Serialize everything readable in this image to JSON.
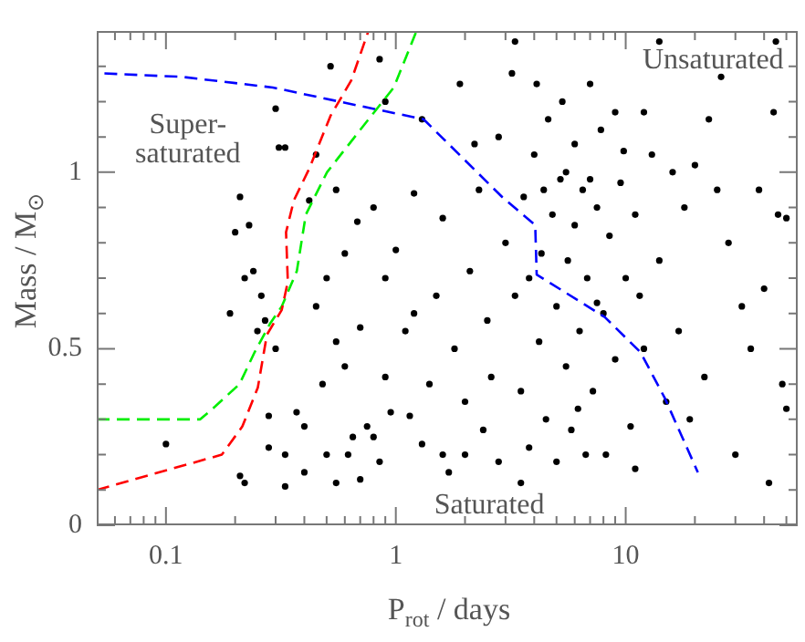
{
  "chart_data": {
    "type": "scatter",
    "xlabel": "P$_{rot}$ / days",
    "ylabel": "Mass / M$_{⊙}$",
    "log": "x",
    "xlim": [
      0.05,
      56
    ],
    "ylim": [
      0,
      1.4
    ],
    "xticks": [
      {
        "value": 0.06,
        "label": null
      },
      {
        "value": 0.07,
        "label": null
      },
      {
        "value": 0.08,
        "label": null
      },
      {
        "value": 0.09,
        "label": null
      },
      0.1,
      {
        "value": 0.2,
        "label": null
      },
      {
        "value": 0.3,
        "label": null
      },
      {
        "value": 0.4,
        "label": null
      },
      {
        "value": 0.5,
        "label": null
      },
      {
        "value": 0.6,
        "label": null
      },
      {
        "value": 0.7,
        "label": null
      },
      {
        "value": 0.8,
        "label": null
      },
      {
        "value": 0.9,
        "label": null
      },
      1,
      {
        "value": 2,
        "label": null
      },
      {
        "value": 3,
        "label": null
      },
      {
        "value": 4,
        "label": null
      },
      {
        "value": 5,
        "label": null
      },
      {
        "value": 6,
        "label": null
      },
      {
        "value": 7,
        "label": null
      },
      {
        "value": 8,
        "label": null
      },
      {
        "value": 9,
        "label": null
      },
      10,
      {
        "value": 20,
        "label": null
      },
      {
        "value": 30,
        "label": null
      },
      {
        "value": 40,
        "label": null
      },
      {
        "value": 50,
        "label": null
      }
    ],
    "yticks": [
      0,
      {
        "value": 0.1,
        "label": null
      },
      {
        "value": 0.2,
        "label": null
      },
      {
        "value": 0.3,
        "label": null
      },
      {
        "value": 0.4,
        "label": null
      },
      0.5,
      {
        "value": 0.6,
        "label": null
      },
      {
        "value": 0.7,
        "label": null
      },
      {
        "value": 0.8,
        "label": null
      },
      {
        "value": 0.9,
        "label": null
      },
      1,
      {
        "value": 1.1,
        "label": null
      },
      {
        "value": 1.2,
        "label": null
      },
      {
        "value": 1.3,
        "label": null
      }
    ],
    "annotations": [
      "Unsaturated",
      "Super-\nsaturated",
      "Saturated"
    ],
    "series": [
      {
        "type": "scatter",
        "color": "#000000",
        "marker": "circle",
        "x": [
          0.19,
          0.21,
          0.2,
          0.22,
          0.21,
          0.22,
          0.23,
          0.24,
          0.26,
          0.27,
          0.25,
          0.28,
          0.28,
          0.3,
          0.31,
          0.3,
          0.33,
          0.33,
          0.33,
          0.1,
          0.37,
          0.4,
          0.4,
          0.42,
          0.45,
          0.48,
          0.5,
          0.52,
          0.55,
          0.55,
          0.6,
          0.6,
          0.62,
          0.65,
          0.7,
          0.7,
          0.75,
          0.8,
          0.8,
          0.85,
          0.9,
          0.9,
          0.95,
          0.55,
          0.68,
          0.45,
          0.5,
          0.85,
          0.9,
          1.0,
          1.1,
          1.15,
          1.2,
          1.3,
          1.3,
          1.4,
          1.5,
          1.6,
          1.7,
          1.8,
          1.9,
          2.0,
          2.0,
          2.1,
          2.3,
          2.4,
          2.5,
          2.6,
          2.8,
          2.8,
          3.0,
          1.2,
          1.6,
          2.2,
          3.2,
          3.3,
          3.5,
          3.5,
          3.6,
          3.8,
          4.0,
          4.2,
          4.3,
          4.5,
          4.6,
          4.8,
          5.0,
          5.0,
          5.2,
          5.3,
          5.5,
          5.6,
          5.8,
          6.0,
          6.0,
          6.3,
          6.5,
          6.7,
          6.8,
          7.0,
          7.2,
          7.5,
          7.8,
          8.0,
          8.2,
          8.5,
          9.0,
          9.0,
          9.5,
          10,
          10.5,
          11,
          11,
          11.5,
          12,
          12,
          4.4,
          5.5,
          7.0,
          3.8,
          6.2,
          4.1,
          7.5,
          9.8,
          13,
          14,
          15,
          16,
          17,
          18,
          19,
          20,
          22,
          23,
          25,
          26,
          28,
          30,
          32,
          35,
          38,
          40,
          42,
          44,
          46,
          50,
          50,
          48,
          3.3,
          14,
          45
        ],
        "values": [
          0.6,
          0.93,
          0.83,
          0.7,
          0.14,
          0.12,
          0.85,
          0.72,
          0.65,
          0.58,
          0.55,
          0.22,
          0.31,
          0.5,
          1.07,
          1.18,
          1.07,
          0.11,
          0.2,
          0.23,
          0.32,
          0.15,
          0.28,
          0.92,
          0.62,
          0.4,
          0.2,
          1.3,
          0.95,
          0.12,
          0.77,
          0.45,
          0.2,
          0.25,
          0.56,
          0.13,
          0.28,
          0.9,
          0.25,
          0.18,
          0.7,
          0.42,
          0.32,
          0.52,
          0.86,
          1.05,
          0.7,
          1.32,
          1.2,
          0.78,
          0.55,
          0.31,
          0.6,
          0.23,
          1.15,
          0.4,
          0.65,
          0.87,
          0.15,
          0.5,
          1.25,
          0.35,
          0.2,
          0.72,
          0.95,
          0.27,
          0.58,
          0.42,
          1.1,
          0.18,
          0.8,
          0.94,
          0.2,
          1.08,
          1.28,
          0.65,
          0.12,
          0.38,
          0.93,
          0.22,
          1.05,
          0.52,
          0.77,
          0.3,
          1.15,
          0.88,
          0.62,
          0.18,
          0.98,
          1.2,
          0.45,
          0.75,
          0.27,
          1.08,
          0.85,
          0.55,
          0.95,
          0.2,
          0.7,
          1.25,
          0.38,
          0.9,
          1.12,
          0.6,
          0.2,
          0.82,
          1.17,
          0.47,
          0.97,
          0.7,
          0.28,
          0.16,
          0.88,
          0.65,
          1.17,
          0.5,
          0.95,
          1.0,
          0.98,
          0.7,
          0.33,
          1.25,
          0.63,
          1.06,
          1.05,
          0.75,
          0.35,
          1.0,
          0.55,
          0.9,
          0.3,
          1.02,
          0.42,
          1.15,
          0.95,
          1.27,
          0.8,
          0.2,
          0.62,
          0.5,
          0.95,
          0.67,
          0.12,
          1.17,
          0.88,
          0.87,
          0.33,
          0.4,
          1.37,
          1.37,
          1.37
        ]
      },
      {
        "type": "line",
        "color": "#ff0000",
        "marker": "none",
        "line_style": "dashed",
        "x": [
          0.05,
          0.175,
          0.215,
          0.251,
          0.275,
          0.319,
          0.339,
          0.333,
          0.36,
          0.42,
          0.52,
          0.64,
          0.76
        ],
        "values": [
          0.1,
          0.2,
          0.28,
          0.39,
          0.54,
          0.61,
          0.69,
          0.83,
          0.92,
          1.01,
          1.16,
          1.26,
          1.4
        ]
      },
      {
        "type": "line",
        "color": "#00ee00",
        "marker": "none",
        "line_style": "dashed",
        "x": [
          0.05,
          0.141,
          0.164,
          0.209,
          0.243,
          0.283,
          0.319,
          0.371,
          0.406,
          0.502,
          0.72,
          0.98,
          1.23
        ],
        "values": [
          0.3,
          0.3,
          0.337,
          0.4,
          0.49,
          0.57,
          0.62,
          0.72,
          0.88,
          1.0,
          1.13,
          1.24,
          1.4
        ]
      },
      {
        "type": "line",
        "color": "#0000ff",
        "marker": "none",
        "line_style": "dashed",
        "x": [
          0.054,
          0.118,
          0.292,
          0.568,
          1.32,
          2.9,
          4.04,
          4.1,
          8.1,
          11.6,
          14.8,
          20.6
        ],
        "values": [
          1.28,
          1.27,
          1.24,
          1.2,
          1.15,
          0.93,
          0.85,
          0.71,
          0.59,
          0.49,
          0.36,
          0.15
        ]
      }
    ]
  }
}
